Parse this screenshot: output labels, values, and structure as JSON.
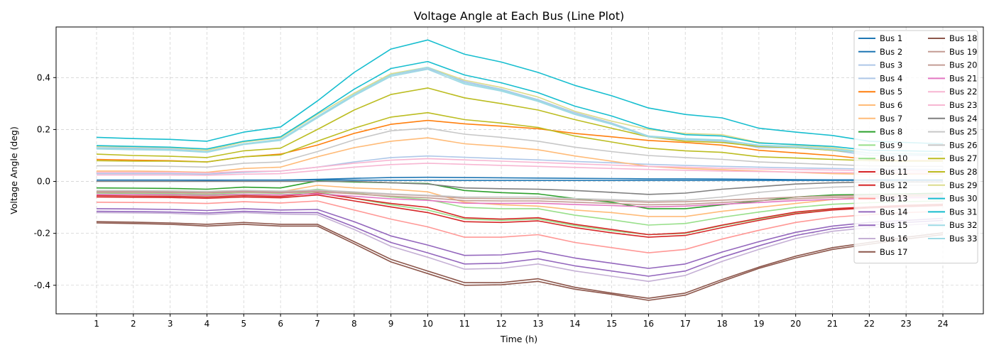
{
  "chart_data": {
    "type": "line",
    "title": "Voltage Angle at Each Bus (Line Plot)",
    "xlabel": "Time (h)",
    "ylabel": "Voltage Angle (deg)",
    "x": [
      1,
      2,
      3,
      4,
      5,
      6,
      7,
      8,
      9,
      10,
      11,
      12,
      13,
      14,
      15,
      16,
      17,
      18,
      19,
      20,
      21,
      22,
      23,
      24
    ],
    "xlim": [
      -0.1,
      25.1
    ],
    "ylim": [
      -0.51,
      0.595
    ],
    "yticks": [
      -0.4,
      -0.2,
      0.0,
      0.2,
      0.4
    ],
    "grid": true,
    "legend": "top-right",
    "series": [
      {
        "name": "Bus 1",
        "color": "#1f77b4",
        "values": [
          0.005,
          0.005,
          0.005,
          0.005,
          0.005,
          0.005,
          0.006,
          0.005,
          0.004,
          0.004,
          0.004,
          0.004,
          0.004,
          0.004,
          0.004,
          0.004,
          0.004,
          0.004,
          0.004,
          0.004,
          0.004,
          0.004,
          0.004,
          0.004
        ]
      },
      {
        "name": "Bus 2",
        "color": "#1f77b4",
        "values": [
          0.005,
          0.005,
          0.005,
          0.004,
          0.005,
          0.005,
          0.008,
          0.012,
          0.015,
          0.016,
          0.015,
          0.014,
          0.013,
          0.012,
          0.011,
          0.01,
          0.01,
          0.009,
          0.008,
          0.007,
          0.006,
          0.006,
          0.006,
          0.006
        ]
      },
      {
        "name": "Bus 3",
        "color": "#aec7e8",
        "values": [
          0.03,
          0.03,
          0.03,
          0.028,
          0.035,
          0.04,
          0.055,
          0.075,
          0.092,
          0.098,
          0.093,
          0.088,
          0.083,
          0.077,
          0.072,
          0.066,
          0.062,
          0.058,
          0.055,
          0.052,
          0.05,
          0.048,
          0.047,
          0.046
        ]
      },
      {
        "name": "Bus 4",
        "color": "#aec7e8",
        "values": [
          0.13,
          0.128,
          0.125,
          0.115,
          0.145,
          0.16,
          0.245,
          0.335,
          0.41,
          0.435,
          0.385,
          0.355,
          0.315,
          0.265,
          0.225,
          0.175,
          0.16,
          0.155,
          0.13,
          0.13,
          0.12,
          0.1,
          0.1,
          0.1
        ]
      },
      {
        "name": "Bus 5",
        "color": "#ff7f0e",
        "values": [
          0.085,
          0.082,
          0.08,
          0.075,
          0.095,
          0.105,
          0.14,
          0.185,
          0.22,
          0.235,
          0.222,
          0.213,
          0.203,
          0.185,
          0.172,
          0.158,
          0.15,
          0.14,
          0.12,
          0.11,
          0.1,
          0.085,
          0.08,
          0.08
        ]
      },
      {
        "name": "Bus 6",
        "color": "#ffbb78",
        "values": [
          0.04,
          0.04,
          0.038,
          0.035,
          0.05,
          0.055,
          0.095,
          0.13,
          0.155,
          0.168,
          0.145,
          0.135,
          0.122,
          0.098,
          0.078,
          0.058,
          0.05,
          0.045,
          0.04,
          0.035,
          0.03,
          0.028,
          0.028,
          0.028
        ]
      },
      {
        "name": "Bus 7",
        "color": "#ffbb78",
        "values": [
          -0.04,
          -0.04,
          -0.042,
          -0.045,
          -0.035,
          -0.04,
          -0.015,
          -0.025,
          -0.03,
          -0.04,
          -0.08,
          -0.09,
          -0.095,
          -0.11,
          -0.12,
          -0.135,
          -0.135,
          -0.115,
          -0.1,
          -0.085,
          -0.07,
          -0.06,
          -0.055,
          -0.05
        ]
      },
      {
        "name": "Bus 8",
        "color": "#2ca02c",
        "values": [
          -0.025,
          -0.026,
          -0.027,
          -0.03,
          -0.022,
          -0.025,
          0.002,
          -0.002,
          -0.005,
          -0.008,
          -0.035,
          -0.043,
          -0.048,
          -0.066,
          -0.08,
          -0.105,
          -0.105,
          -0.09,
          -0.075,
          -0.06,
          -0.052,
          -0.05,
          -0.048,
          -0.045
        ]
      },
      {
        "name": "Bus 9",
        "color": "#98df8a",
        "values": [
          -0.045,
          -0.046,
          -0.047,
          -0.05,
          -0.043,
          -0.046,
          -0.03,
          -0.045,
          -0.06,
          -0.07,
          -0.1,
          -0.105,
          -0.105,
          -0.13,
          -0.148,
          -0.168,
          -0.162,
          -0.138,
          -0.118,
          -0.1,
          -0.088,
          -0.082,
          -0.078,
          -0.075
        ]
      },
      {
        "name": "Bus 10",
        "color": "#98df8a",
        "values": [
          -0.05,
          -0.05,
          -0.052,
          -0.055,
          -0.05,
          -0.052,
          -0.04,
          -0.065,
          -0.09,
          -0.11,
          -0.145,
          -0.15,
          -0.145,
          -0.17,
          -0.19,
          -0.205,
          -0.2,
          -0.17,
          -0.145,
          -0.12,
          -0.108,
          -0.1,
          -0.095,
          -0.09
        ]
      },
      {
        "name": "Bus 11",
        "color": "#d62728",
        "values": [
          -0.055,
          -0.056,
          -0.057,
          -0.06,
          -0.055,
          -0.058,
          -0.045,
          -0.065,
          -0.085,
          -0.1,
          -0.14,
          -0.145,
          -0.14,
          -0.165,
          -0.185,
          -0.205,
          -0.198,
          -0.168,
          -0.142,
          -0.118,
          -0.105,
          -0.098,
          -0.092,
          -0.088
        ]
      },
      {
        "name": "Bus 12",
        "color": "#d62728",
        "values": [
          -0.06,
          -0.061,
          -0.062,
          -0.065,
          -0.06,
          -0.063,
          -0.052,
          -0.075,
          -0.098,
          -0.12,
          -0.155,
          -0.158,
          -0.152,
          -0.178,
          -0.198,
          -0.215,
          -0.208,
          -0.178,
          -0.15,
          -0.125,
          -0.11,
          -0.102,
          -0.097,
          -0.093
        ]
      },
      {
        "name": "Bus 13",
        "color": "#ff9896",
        "values": [
          -0.08,
          -0.081,
          -0.082,
          -0.085,
          -0.078,
          -0.083,
          -0.075,
          -0.11,
          -0.145,
          -0.175,
          -0.215,
          -0.215,
          -0.205,
          -0.235,
          -0.255,
          -0.275,
          -0.262,
          -0.222,
          -0.188,
          -0.158,
          -0.138,
          -0.128,
          -0.12,
          -0.115
        ]
      },
      {
        "name": "Bus 14",
        "color": "#9467bd",
        "values": [
          -0.105,
          -0.106,
          -0.108,
          -0.112,
          -0.105,
          -0.11,
          -0.108,
          -0.155,
          -0.21,
          -0.245,
          -0.285,
          -0.283,
          -0.268,
          -0.295,
          -0.315,
          -0.335,
          -0.318,
          -0.272,
          -0.232,
          -0.196,
          -0.172,
          -0.158,
          -0.15,
          -0.142
        ]
      },
      {
        "name": "Bus 15",
        "color": "#9467bd",
        "values": [
          -0.115,
          -0.116,
          -0.118,
          -0.122,
          -0.115,
          -0.12,
          -0.12,
          -0.175,
          -0.235,
          -0.275,
          -0.318,
          -0.315,
          -0.298,
          -0.325,
          -0.345,
          -0.365,
          -0.345,
          -0.292,
          -0.248,
          -0.208,
          -0.182,
          -0.168,
          -0.158,
          -0.15
        ]
      },
      {
        "name": "Bus 16",
        "color": "#c5b0d5",
        "values": [
          -0.12,
          -0.121,
          -0.123,
          -0.128,
          -0.12,
          -0.126,
          -0.128,
          -0.185,
          -0.25,
          -0.292,
          -0.338,
          -0.335,
          -0.318,
          -0.345,
          -0.365,
          -0.385,
          -0.362,
          -0.308,
          -0.262,
          -0.22,
          -0.192,
          -0.178,
          -0.168,
          -0.16
        ]
      },
      {
        "name": "Bus 17",
        "color": "#8c564b",
        "values": [
          -0.16,
          -0.162,
          -0.165,
          -0.172,
          -0.165,
          -0.172,
          -0.172,
          -0.24,
          -0.31,
          -0.355,
          -0.4,
          -0.398,
          -0.385,
          -0.415,
          -0.435,
          -0.458,
          -0.438,
          -0.385,
          -0.335,
          -0.295,
          -0.262,
          -0.242,
          -0.222,
          -0.205
        ]
      },
      {
        "name": "Bus 18",
        "color": "#8c564b",
        "values": [
          -0.155,
          -0.157,
          -0.16,
          -0.165,
          -0.158,
          -0.165,
          -0.165,
          -0.232,
          -0.3,
          -0.345,
          -0.39,
          -0.39,
          -0.375,
          -0.408,
          -0.43,
          -0.45,
          -0.43,
          -0.378,
          -0.33,
          -0.288,
          -0.255,
          -0.235,
          -0.215,
          -0.198
        ]
      },
      {
        "name": "Bus 19",
        "color": "#c49c94",
        "values": [
          -0.038,
          -0.038,
          -0.039,
          -0.041,
          -0.037,
          -0.04,
          -0.036,
          -0.042,
          -0.05,
          -0.055,
          -0.065,
          -0.066,
          -0.066,
          -0.071,
          -0.075,
          -0.08,
          -0.078,
          -0.072,
          -0.066,
          -0.06,
          -0.056,
          -0.053,
          -0.051,
          -0.05
        ]
      },
      {
        "name": "Bus 20",
        "color": "#c49c94",
        "values": [
          -0.042,
          -0.042,
          -0.043,
          -0.045,
          -0.041,
          -0.044,
          -0.04,
          -0.048,
          -0.057,
          -0.063,
          -0.074,
          -0.075,
          -0.075,
          -0.08,
          -0.085,
          -0.09,
          -0.088,
          -0.081,
          -0.074,
          -0.067,
          -0.062,
          -0.059,
          -0.057,
          -0.056
        ]
      },
      {
        "name": "Bus 21",
        "color": "#e377c2",
        "values": [
          -0.05,
          -0.05,
          -0.051,
          -0.053,
          -0.049,
          -0.052,
          -0.048,
          -0.057,
          -0.067,
          -0.073,
          -0.084,
          -0.085,
          -0.084,
          -0.089,
          -0.093,
          -0.098,
          -0.095,
          -0.088,
          -0.081,
          -0.074,
          -0.069,
          -0.065,
          -0.063,
          -0.062
        ]
      },
      {
        "name": "Bus 22",
        "color": "#f7b6d2",
        "values": [
          0.025,
          0.025,
          0.025,
          0.024,
          0.028,
          0.03,
          0.042,
          0.055,
          0.065,
          0.07,
          0.066,
          0.062,
          0.058,
          0.054,
          0.05,
          0.046,
          0.043,
          0.04,
          0.038,
          0.036,
          0.034,
          0.033,
          0.032,
          0.032
        ]
      },
      {
        "name": "Bus 23",
        "color": "#f7b6d2",
        "values": [
          0.035,
          0.035,
          0.035,
          0.033,
          0.038,
          0.04,
          0.055,
          0.07,
          0.082,
          0.088,
          0.083,
          0.078,
          0.073,
          0.068,
          0.063,
          0.058,
          0.055,
          0.051,
          0.048,
          0.046,
          0.044,
          0.042,
          0.041,
          0.04
        ]
      },
      {
        "name": "Bus 24",
        "color": "#7f7f7f",
        "values": [
          0.0,
          0.0,
          0.0,
          0.0,
          0.0,
          0.0,
          0.0,
          0.0,
          -0.005,
          -0.01,
          -0.025,
          -0.028,
          -0.03,
          -0.035,
          -0.042,
          -0.05,
          -0.045,
          -0.03,
          -0.02,
          -0.01,
          -0.005,
          -0.003,
          -0.002,
          -0.002
        ]
      },
      {
        "name": "Bus 25",
        "color": "#c7c7c7",
        "values": [
          0.06,
          0.06,
          0.058,
          0.055,
          0.07,
          0.075,
          0.115,
          0.16,
          0.195,
          0.205,
          0.182,
          0.17,
          0.155,
          0.132,
          0.115,
          0.1,
          0.092,
          0.085,
          0.075,
          0.07,
          0.065,
          0.06,
          0.058,
          0.058
        ]
      },
      {
        "name": "Bus 26",
        "color": "#c7c7c7",
        "values": [
          -0.035,
          -0.035,
          -0.036,
          -0.038,
          -0.034,
          -0.037,
          -0.033,
          -0.04,
          -0.048,
          -0.053,
          -0.06,
          -0.06,
          -0.06,
          -0.066,
          -0.07,
          -0.075,
          -0.072,
          -0.06,
          -0.042,
          -0.03,
          -0.022,
          -0.018,
          -0.015,
          -0.014
        ]
      },
      {
        "name": "Bus 27",
        "color": "#bcbd22",
        "values": [
          0.105,
          0.1,
          0.097,
          0.092,
          0.118,
          0.128,
          0.2,
          0.275,
          0.335,
          0.36,
          0.322,
          0.3,
          0.275,
          0.238,
          0.205,
          0.172,
          0.155,
          0.15,
          0.135,
          0.13,
          0.12,
          0.11,
          0.108,
          0.105
        ]
      },
      {
        "name": "Bus 28",
        "color": "#bcbd22",
        "values": [
          0.08,
          0.078,
          0.078,
          0.075,
          0.095,
          0.102,
          0.155,
          0.205,
          0.248,
          0.265,
          0.238,
          0.225,
          0.208,
          0.175,
          0.152,
          0.128,
          0.118,
          0.112,
          0.095,
          0.09,
          0.085,
          0.08,
          0.078,
          0.078
        ]
      },
      {
        "name": "Bus 29",
        "color": "#dbdb8d",
        "values": [
          0.135,
          0.133,
          0.13,
          0.12,
          0.152,
          0.168,
          0.258,
          0.34,
          0.415,
          0.44,
          0.39,
          0.362,
          0.325,
          0.27,
          0.232,
          0.2,
          0.185,
          0.18,
          0.15,
          0.14,
          0.13,
          0.11,
          0.108,
          0.105
        ]
      },
      {
        "name": "Bus 30",
        "color": "#17becf",
        "values": [
          0.17,
          0.165,
          0.162,
          0.155,
          0.19,
          0.21,
          0.31,
          0.42,
          0.51,
          0.545,
          0.49,
          0.46,
          0.42,
          0.37,
          0.33,
          0.283,
          0.258,
          0.245,
          0.205,
          0.19,
          0.177,
          0.155,
          0.15,
          0.145
        ]
      },
      {
        "name": "Bus 31",
        "color": "#17becf",
        "values": [
          0.138,
          0.135,
          0.132,
          0.125,
          0.155,
          0.172,
          0.262,
          0.355,
          0.435,
          0.462,
          0.41,
          0.38,
          0.342,
          0.29,
          0.252,
          0.205,
          0.18,
          0.175,
          0.148,
          0.142,
          0.135,
          0.12,
          0.118,
          0.115
        ]
      },
      {
        "name": "Bus 32",
        "color": "#9edae5",
        "values": [
          0.128,
          0.125,
          0.122,
          0.115,
          0.145,
          0.162,
          0.25,
          0.335,
          0.41,
          0.44,
          0.38,
          0.352,
          0.312,
          0.26,
          0.222,
          0.175,
          0.165,
          0.16,
          0.14,
          0.135,
          0.125,
          0.11,
          0.108,
          0.105
        ]
      },
      {
        "name": "Bus 33",
        "color": "#9edae5",
        "values": [
          0.125,
          0.122,
          0.12,
          0.112,
          0.142,
          0.158,
          0.245,
          0.33,
          0.405,
          0.432,
          0.375,
          0.348,
          0.308,
          0.258,
          0.22,
          0.172,
          0.162,
          0.158,
          0.138,
          0.132,
          0.122,
          0.108,
          0.105,
          0.102
        ]
      }
    ]
  }
}
